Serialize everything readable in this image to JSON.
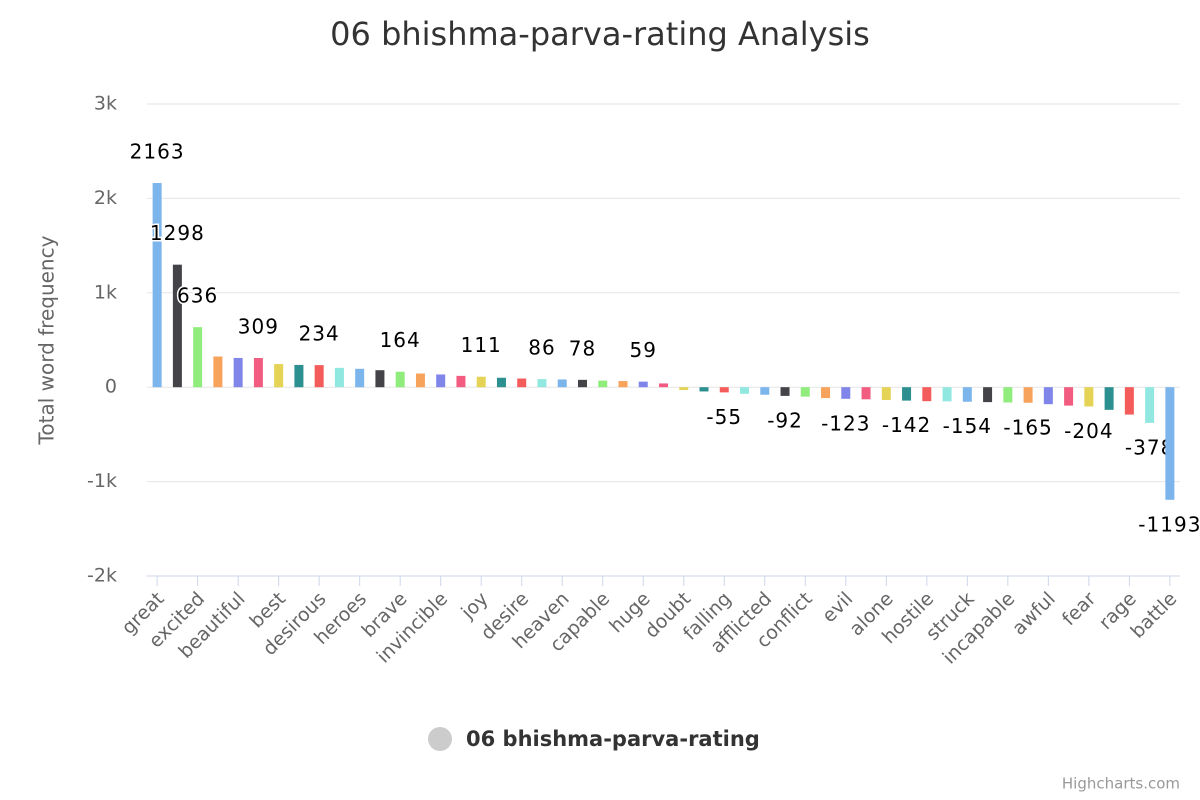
{
  "chart_data": {
    "type": "bar",
    "title": "06 bhishma-parva-rating Analysis",
    "y_axis_label": "Total word frequency",
    "credits": "Highcharts.com",
    "categories": [
      "great",
      null,
      "excited",
      null,
      "beautiful",
      null,
      "best",
      null,
      "desirous",
      null,
      "heroes",
      null,
      "brave",
      null,
      "invincible",
      null,
      "joy",
      null,
      "desire",
      null,
      "heaven",
      null,
      "capable",
      null,
      "huge",
      null,
      "doubt",
      null,
      "falling",
      null,
      "afflicted",
      null,
      "conflict",
      null,
      "evil",
      null,
      "alone",
      null,
      "hostile",
      null,
      "struck",
      null,
      "incapable",
      null,
      "awful",
      null,
      "fear",
      null,
      "rage",
      null,
      "battle"
    ],
    "series": [
      {
        "name": "06 bhishma-parva-rating",
        "legend_color": "#cccccc",
        "colors": [
          "#7cb5ec",
          "#434348",
          "#90ed7d",
          "#f7a35c",
          "#8085e9",
          "#f15c80",
          "#e4d354",
          "#2b908f",
          "#f45b5b",
          "#91e8e1"
        ],
        "values": [
          2163,
          1298,
          636,
          325,
          310,
          309,
          245,
          236,
          234,
          205,
          195,
          180,
          164,
          145,
          135,
          120,
          111,
          100,
          92,
          86,
          82,
          78,
          70,
          65,
          59,
          40,
          -30,
          -45,
          -55,
          -70,
          -80,
          -92,
          -100,
          -115,
          -123,
          -128,
          -135,
          -142,
          -148,
          -150,
          -154,
          -158,
          -162,
          -165,
          -180,
          -195,
          -204,
          -240,
          -290,
          -378,
          -1193
        ],
        "value_labels": [
          "2163",
          "1298",
          "636",
          null,
          null,
          "309",
          null,
          null,
          "234",
          null,
          null,
          null,
          "164",
          null,
          null,
          null,
          "111",
          null,
          null,
          "86",
          null,
          "78",
          null,
          null,
          "59",
          null,
          null,
          null,
          "-55",
          null,
          null,
          "-92",
          null,
          null,
          "-123",
          null,
          null,
          "-142",
          null,
          null,
          "-154",
          null,
          null,
          "-165",
          null,
          null,
          "-204",
          null,
          null,
          "-378",
          "-1193"
        ]
      }
    ],
    "ylim": [
      -2000,
      3000
    ],
    "yticks": [
      {
        "value": -2000,
        "label": "-2k"
      },
      {
        "value": -1000,
        "label": "-1k"
      },
      0,
      {
        "value": 1000,
        "label": "1k"
      },
      {
        "value": 2000,
        "label": "2k"
      },
      {
        "value": 3000,
        "label": "3k"
      }
    ],
    "grid": true,
    "legend": "bottom"
  }
}
